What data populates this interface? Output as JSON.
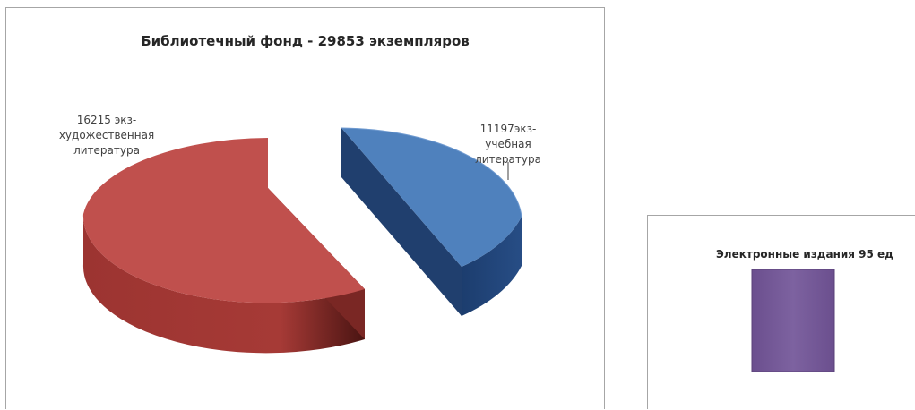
{
  "chart_data": [
    {
      "type": "pie",
      "title": "Библиотечный фонд  - 29853 экземпляров",
      "slices": [
        {
          "category": "художественная литература",
          "value": 16215,
          "label_lines": [
            "16215 экз-",
            "художественная",
            "литература"
          ],
          "color": "#c0504d"
        },
        {
          "category": "учебная литература",
          "value": 11197,
          "label_lines": [
            "11197экз-",
            "учебная",
            "литература"
          ],
          "color": "#4f81bd"
        }
      ],
      "style": "3d-exploded"
    },
    {
      "type": "bar",
      "title": "Электронные издания 95 ед",
      "categories": [
        ""
      ],
      "values": [
        95
      ],
      "color": "#8064a2"
    }
  ]
}
